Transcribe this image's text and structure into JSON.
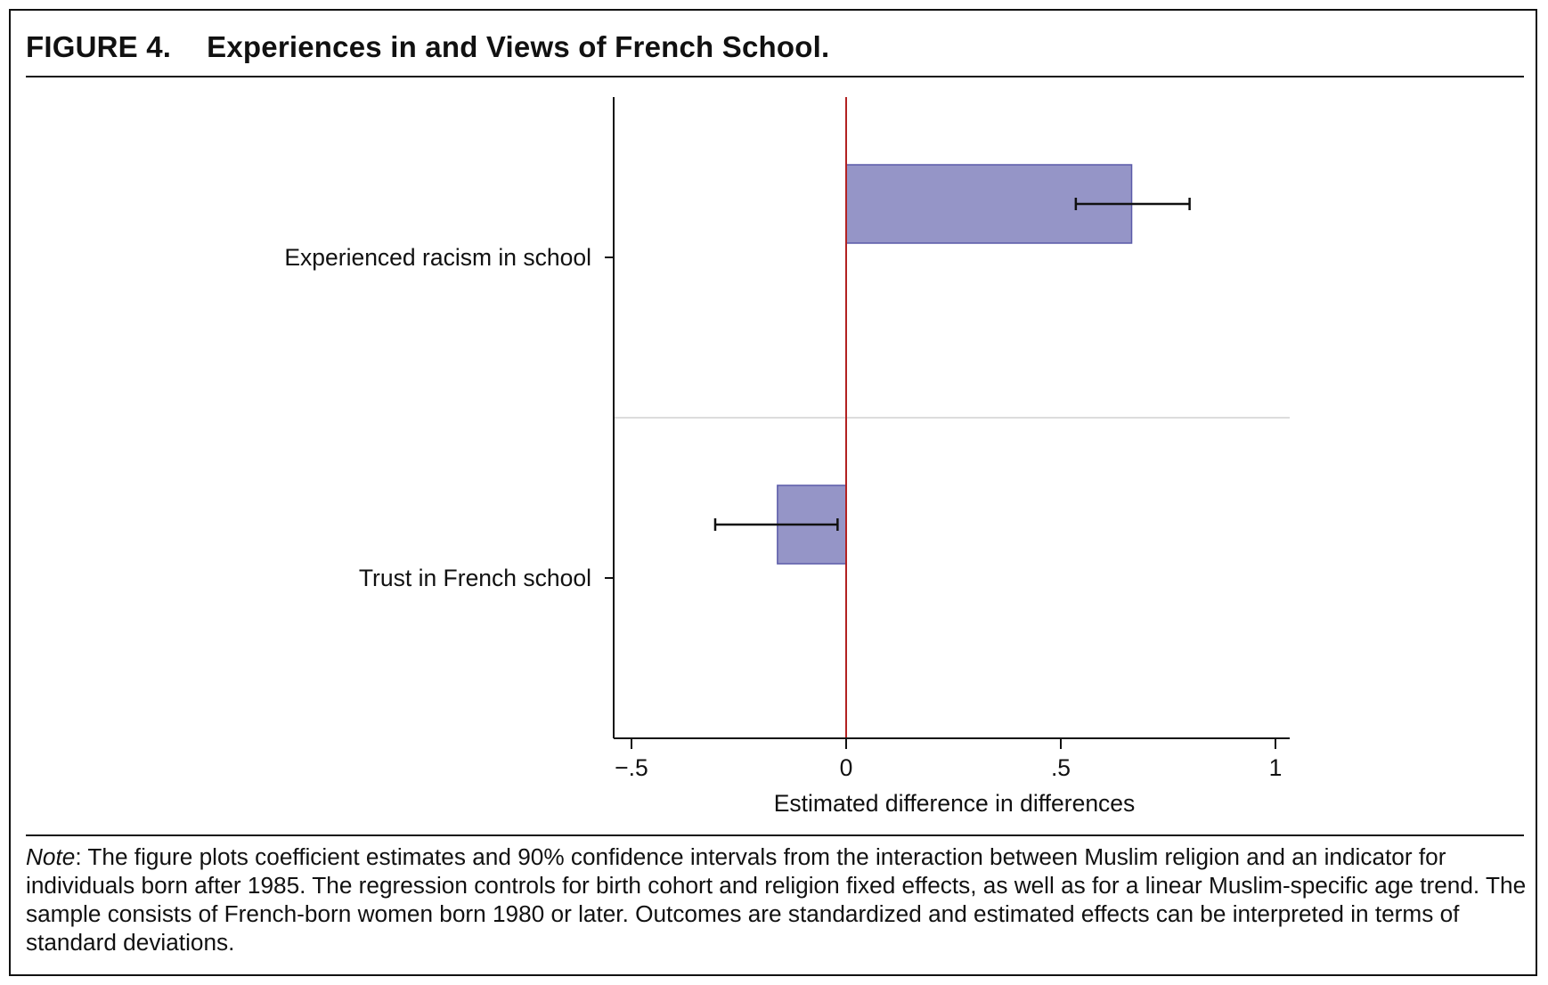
{
  "figure": {
    "label": "FIGURE 4.",
    "title": "Experiences in and Views of French School."
  },
  "note": {
    "lead": "Note",
    "text": ": The figure plots coefficient estimates and 90% confidence intervals from the interaction between Muslim religion and an indicator for individuals born after 1985. The regression controls for birth cohort and religion fixed effects, as well as for a linear Muslim-specific age trend. The sample consists of French-born women born 1980 or later. Outcomes are standardized and estimated effects can be interpreted in terms of standard deviations."
  },
  "chart_data": {
    "type": "bar",
    "orientation": "horizontal",
    "categories": [
      "Experienced racism in school",
      "Trust in French school"
    ],
    "values": [
      0.665,
      -0.16
    ],
    "ci_low": [
      0.535,
      -0.305
    ],
    "ci_high": [
      0.8,
      -0.02
    ],
    "xlabel": "Estimated difference in differences",
    "ylabel": "",
    "xlim": [
      -0.54,
      1.04
    ],
    "xticks": [
      -0.5,
      0,
      0.5,
      1
    ],
    "xtick_labels": [
      "−.5",
      "0",
      ".5",
      "1"
    ],
    "reference_line": 0,
    "grid": false,
    "colors": {
      "bar_fill": "#9595c7",
      "bar_stroke": "#5a5aa8",
      "reference_line": "#b22222",
      "error_bar": "#111111",
      "separator": "#dcdcdc"
    }
  }
}
